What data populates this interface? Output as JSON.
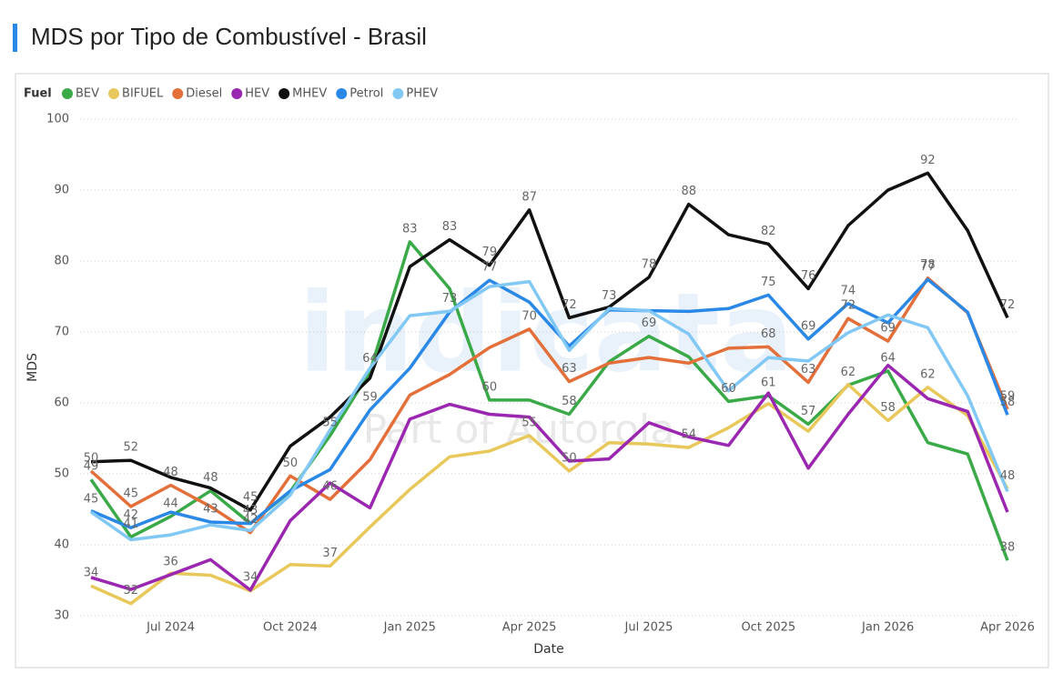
{
  "chart_data": {
    "type": "line",
    "title": "MDS por Tipo de Combustível - Brasil",
    "x_label": "Date",
    "y_label": "MDS",
    "legend_title": "Fuel",
    "legend": "top-left",
    "grid": true,
    "watermark": {
      "text": "indicata",
      "subtext": "Part of Autorola"
    },
    "categories": [
      null,
      null,
      "Jul 2024",
      null,
      null,
      "Oct 2024",
      null,
      null,
      "Jan 2025",
      null,
      null,
      "Apr 2025",
      null,
      null,
      "Jul 2025",
      null,
      null,
      "Oct 2025",
      null,
      null,
      "Jan 2026",
      null,
      null,
      "Apr 2026"
    ],
    "ylim": [
      30,
      100
    ],
    "yticks": [
      30,
      40,
      50,
      60,
      70,
      80,
      90,
      100
    ],
    "series": [
      {
        "name": "BEV",
        "color": "#3aaa48",
        "values": [
          49.2,
          41.1,
          44.0,
          47.6,
          43.0,
          47.5,
          55.4,
          64.4,
          82.7,
          76.1,
          60.4,
          60.4,
          58.4,
          65.8,
          69.4,
          66.5,
          60.2,
          61.0,
          57.0,
          62.5,
          64.5,
          54.4,
          52.8,
          37.8
        ],
        "value_labels": [
          "49",
          "41",
          "44",
          "48",
          null,
          null,
          "55",
          "64",
          "83",
          null,
          "60",
          null,
          "58",
          null,
          "69",
          null,
          "60",
          "61",
          "57",
          "62",
          "64",
          null,
          null,
          "38"
        ]
      },
      {
        "name": "BIFUEL",
        "color": "#e8c85a",
        "values": [
          34.2,
          31.7,
          36.0,
          35.7,
          33.5,
          37.2,
          37.0,
          42.5,
          47.8,
          52.4,
          53.2,
          55.4,
          50.4,
          54.4,
          54.2,
          53.7,
          56.5,
          59.9,
          56.0,
          62.6,
          57.5,
          62.2,
          58.2,
          47.9
        ],
        "value_labels": [
          "34",
          "32",
          null,
          null,
          null,
          null,
          "37",
          null,
          null,
          null,
          null,
          "55",
          "50",
          null,
          null,
          "54",
          null,
          null,
          null,
          null,
          "58",
          "62",
          null,
          "48"
        ]
      },
      {
        "name": "Diesel",
        "color": "#e3703a",
        "values": [
          50.4,
          45.4,
          48.4,
          45.4,
          41.7,
          49.7,
          46.4,
          52.0,
          61.1,
          64.0,
          67.8,
          70.4,
          63.0,
          65.6,
          66.4,
          65.6,
          67.7,
          67.9,
          62.9,
          71.9,
          68.7,
          77.6,
          72.7,
          59.1
        ],
        "value_labels": [
          "50",
          "45",
          "48",
          null,
          "42",
          "50",
          "46",
          null,
          null,
          null,
          null,
          "70",
          "63",
          null,
          null,
          null,
          null,
          "68",
          "63",
          "72",
          "69",
          "78",
          null,
          "59"
        ]
      },
      {
        "name": "HEV",
        "color": "#9b27b0",
        "values": [
          35.4,
          33.7,
          35.8,
          37.9,
          33.6,
          43.4,
          48.7,
          45.2,
          57.7,
          59.8,
          58.4,
          58.0,
          51.8,
          52.1,
          57.2,
          55.2,
          54.0,
          61.4,
          50.8,
          58.4,
          65.3,
          60.6,
          58.8,
          44.6
        ],
        "value_labels": [
          null,
          null,
          "36",
          null,
          "34",
          null,
          null,
          null,
          null,
          null,
          null,
          null,
          null,
          null,
          null,
          null,
          null,
          null,
          null,
          null,
          null,
          null,
          null,
          null
        ]
      },
      {
        "name": "MHEV",
        "color": "#111111",
        "values": [
          51.7,
          51.9,
          49.5,
          48.0,
          44.9,
          53.9,
          58.0,
          63.5,
          79.2,
          83.0,
          79.4,
          87.2,
          72.0,
          73.5,
          77.7,
          88.0,
          83.7,
          82.4,
          76.1,
          85.0,
          90.0,
          92.4,
          84.3,
          72.0
        ],
        "value_labels": [
          null,
          "52",
          null,
          null,
          "45",
          null,
          null,
          null,
          null,
          "83",
          "79",
          "87",
          "72",
          null,
          "78",
          "88",
          null,
          "82",
          "76",
          null,
          null,
          "92",
          null,
          "72"
        ]
      },
      {
        "name": "Petrol",
        "color": "#2a88e6",
        "values": [
          44.8,
          42.4,
          44.6,
          43.2,
          43.0,
          47.6,
          50.6,
          59.0,
          64.9,
          72.8,
          77.3,
          74.2,
          68.0,
          73.1,
          73.0,
          72.9,
          73.3,
          75.2,
          69.0,
          74.0,
          71.3,
          77.4,
          72.8,
          58.3
        ],
        "value_labels": [
          null,
          "42",
          null,
          "43",
          "43",
          null,
          null,
          "59",
          null,
          null,
          "77",
          null,
          null,
          null,
          null,
          null,
          null,
          "75",
          "69",
          "74",
          null,
          "77",
          null,
          "58"
        ]
      },
      {
        "name": "PHEV",
        "color": "#82c8f5",
        "values": [
          44.6,
          40.7,
          41.4,
          42.8,
          42.0,
          47.0,
          56.2,
          64.9,
          72.3,
          72.9,
          76.4,
          77.1,
          67.4,
          73.3,
          73.0,
          69.7,
          61.7,
          66.4,
          65.9,
          69.9,
          72.4,
          70.6,
          61.0,
          47.5
        ],
        "value_labels": [
          "45",
          null,
          null,
          null,
          null,
          null,
          null,
          null,
          null,
          "73",
          null,
          null,
          null,
          "73",
          null,
          null,
          null,
          null,
          null,
          null,
          null,
          null,
          null,
          null
        ]
      }
    ]
  }
}
